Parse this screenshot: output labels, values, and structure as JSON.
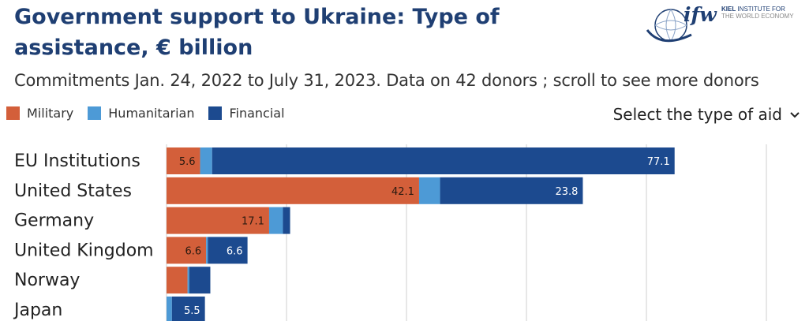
{
  "header": {
    "title": "Government support to Ukraine: Type of assistance, € billion",
    "subtitle": "Commitments Jan. 24, 2022 to July 31, 2023. Data on 42 donors ; scroll to see more donors"
  },
  "logo": {
    "mark": "ifw",
    "line1_bold": "KIEL",
    "line1_rest": " INSTITUTE FOR",
    "line2": "THE WORLD ECONOMY"
  },
  "legend": {
    "items": [
      {
        "label": "Military",
        "color": "#d35f3a"
      },
      {
        "label": "Humanitarian",
        "color": "#4d9ad6"
      },
      {
        "label": "Financial",
        "color": "#1c4a8f"
      }
    ]
  },
  "controls": {
    "select_label": "Select the type of aid",
    "select_icon": "chevron-down-icon"
  },
  "chart_data": {
    "type": "bar",
    "orientation": "horizontal",
    "stacked": true,
    "categories": [
      "EU Institutions",
      "United States",
      "Germany",
      "United Kingdom",
      "Norway",
      "Japan"
    ],
    "series": [
      {
        "name": "Military",
        "color": "#d35f3a",
        "values": [
          5.6,
          42.1,
          17.1,
          6.6,
          3.5,
          0.0
        ]
      },
      {
        "name": "Humanitarian",
        "color": "#4d9ad6",
        "values": [
          2.0,
          3.5,
          2.3,
          0.3,
          0.3,
          0.9
        ]
      },
      {
        "name": "Financial",
        "color": "#1c4a8f",
        "values": [
          77.1,
          23.8,
          1.2,
          6.6,
          3.5,
          5.5
        ]
      }
    ],
    "data_labels": [
      [
        "5.6",
        "",
        "77.1"
      ],
      [
        "42.1",
        "",
        "23.8"
      ],
      [
        "17.1",
        "",
        ""
      ],
      [
        "6.6",
        "",
        "6.6"
      ],
      [
        "",
        "",
        ""
      ],
      [
        "",
        "",
        "5.5"
      ]
    ],
    "xlim": [
      0,
      100
    ],
    "x_gridlines": [
      0,
      20,
      40,
      60,
      80,
      100
    ],
    "grid": true
  }
}
